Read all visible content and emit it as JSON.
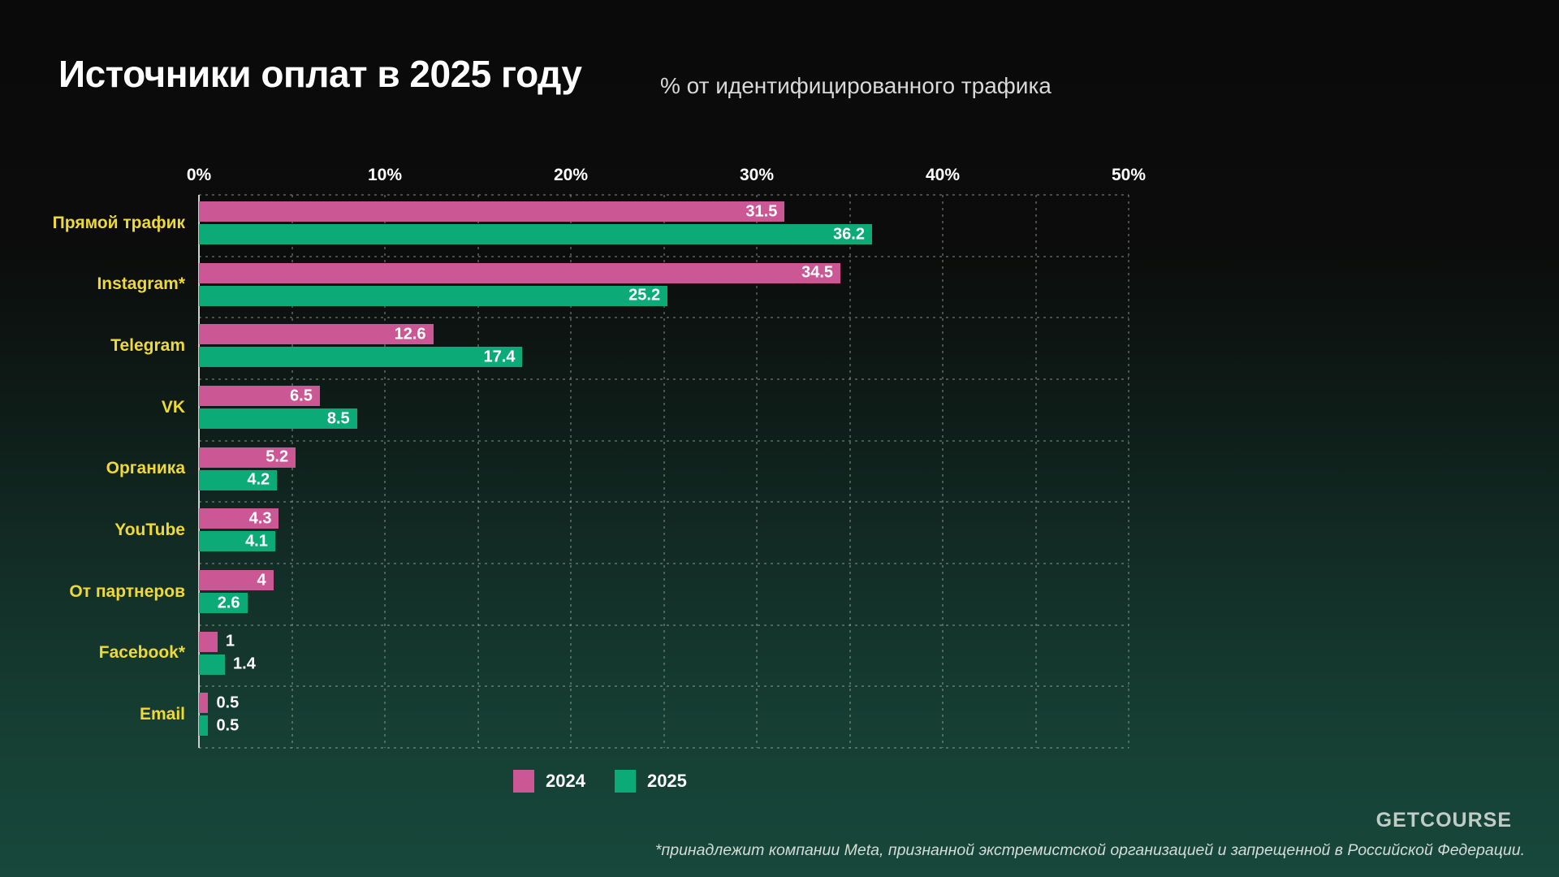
{
  "header": {
    "title": "Источники оплат в 2025 году",
    "subtitle": "% от идентифицированного трафика"
  },
  "chart_data": {
    "type": "bar",
    "orientation": "horizontal",
    "title": "Источники оплат в 2025 году",
    "subtitle": "% от идентифицированного трафика",
    "categories": [
      "Прямой трафик",
      "Instagram*",
      "Telegram",
      "VK",
      "Органика",
      "YouTube",
      "От партнеров",
      "Facebook*",
      "Email"
    ],
    "series": [
      {
        "name": "2024",
        "color": "#cb5794",
        "values": [
          31.5,
          34.5,
          12.6,
          6.5,
          5.2,
          4.3,
          4,
          1,
          0.5
        ]
      },
      {
        "name": "2025",
        "color": "#0caa77",
        "values": [
          36.2,
          25.2,
          17.4,
          8.5,
          4.2,
          4.1,
          2.6,
          1.4,
          0.5
        ]
      }
    ],
    "x_axis": {
      "min": 0,
      "max": 50,
      "tick_step": 10,
      "grid_step": 5,
      "tick_labels": [
        "0%",
        "10%",
        "20%",
        "30%",
        "40%",
        "50%"
      ],
      "unit": "%"
    },
    "value_labels_shown": true,
    "grid": "dashed, vertical every 5%, horizontal row separators",
    "legend_position": "bottom-center"
  },
  "colors": {
    "series_2024": "#cb5794",
    "series_2025": "#0caa77",
    "category_label": "#eed936",
    "tick_label": "#ffffff",
    "value_label": "#ffffff",
    "background_top": "#0a0a0a",
    "background_bottom": "#17483b"
  },
  "footer": {
    "logo": "GETCOURSE",
    "disclaimer": "*принадлежит компании Meta, признанной экстремистской организацией и запрещенной в Российской Федерации."
  }
}
